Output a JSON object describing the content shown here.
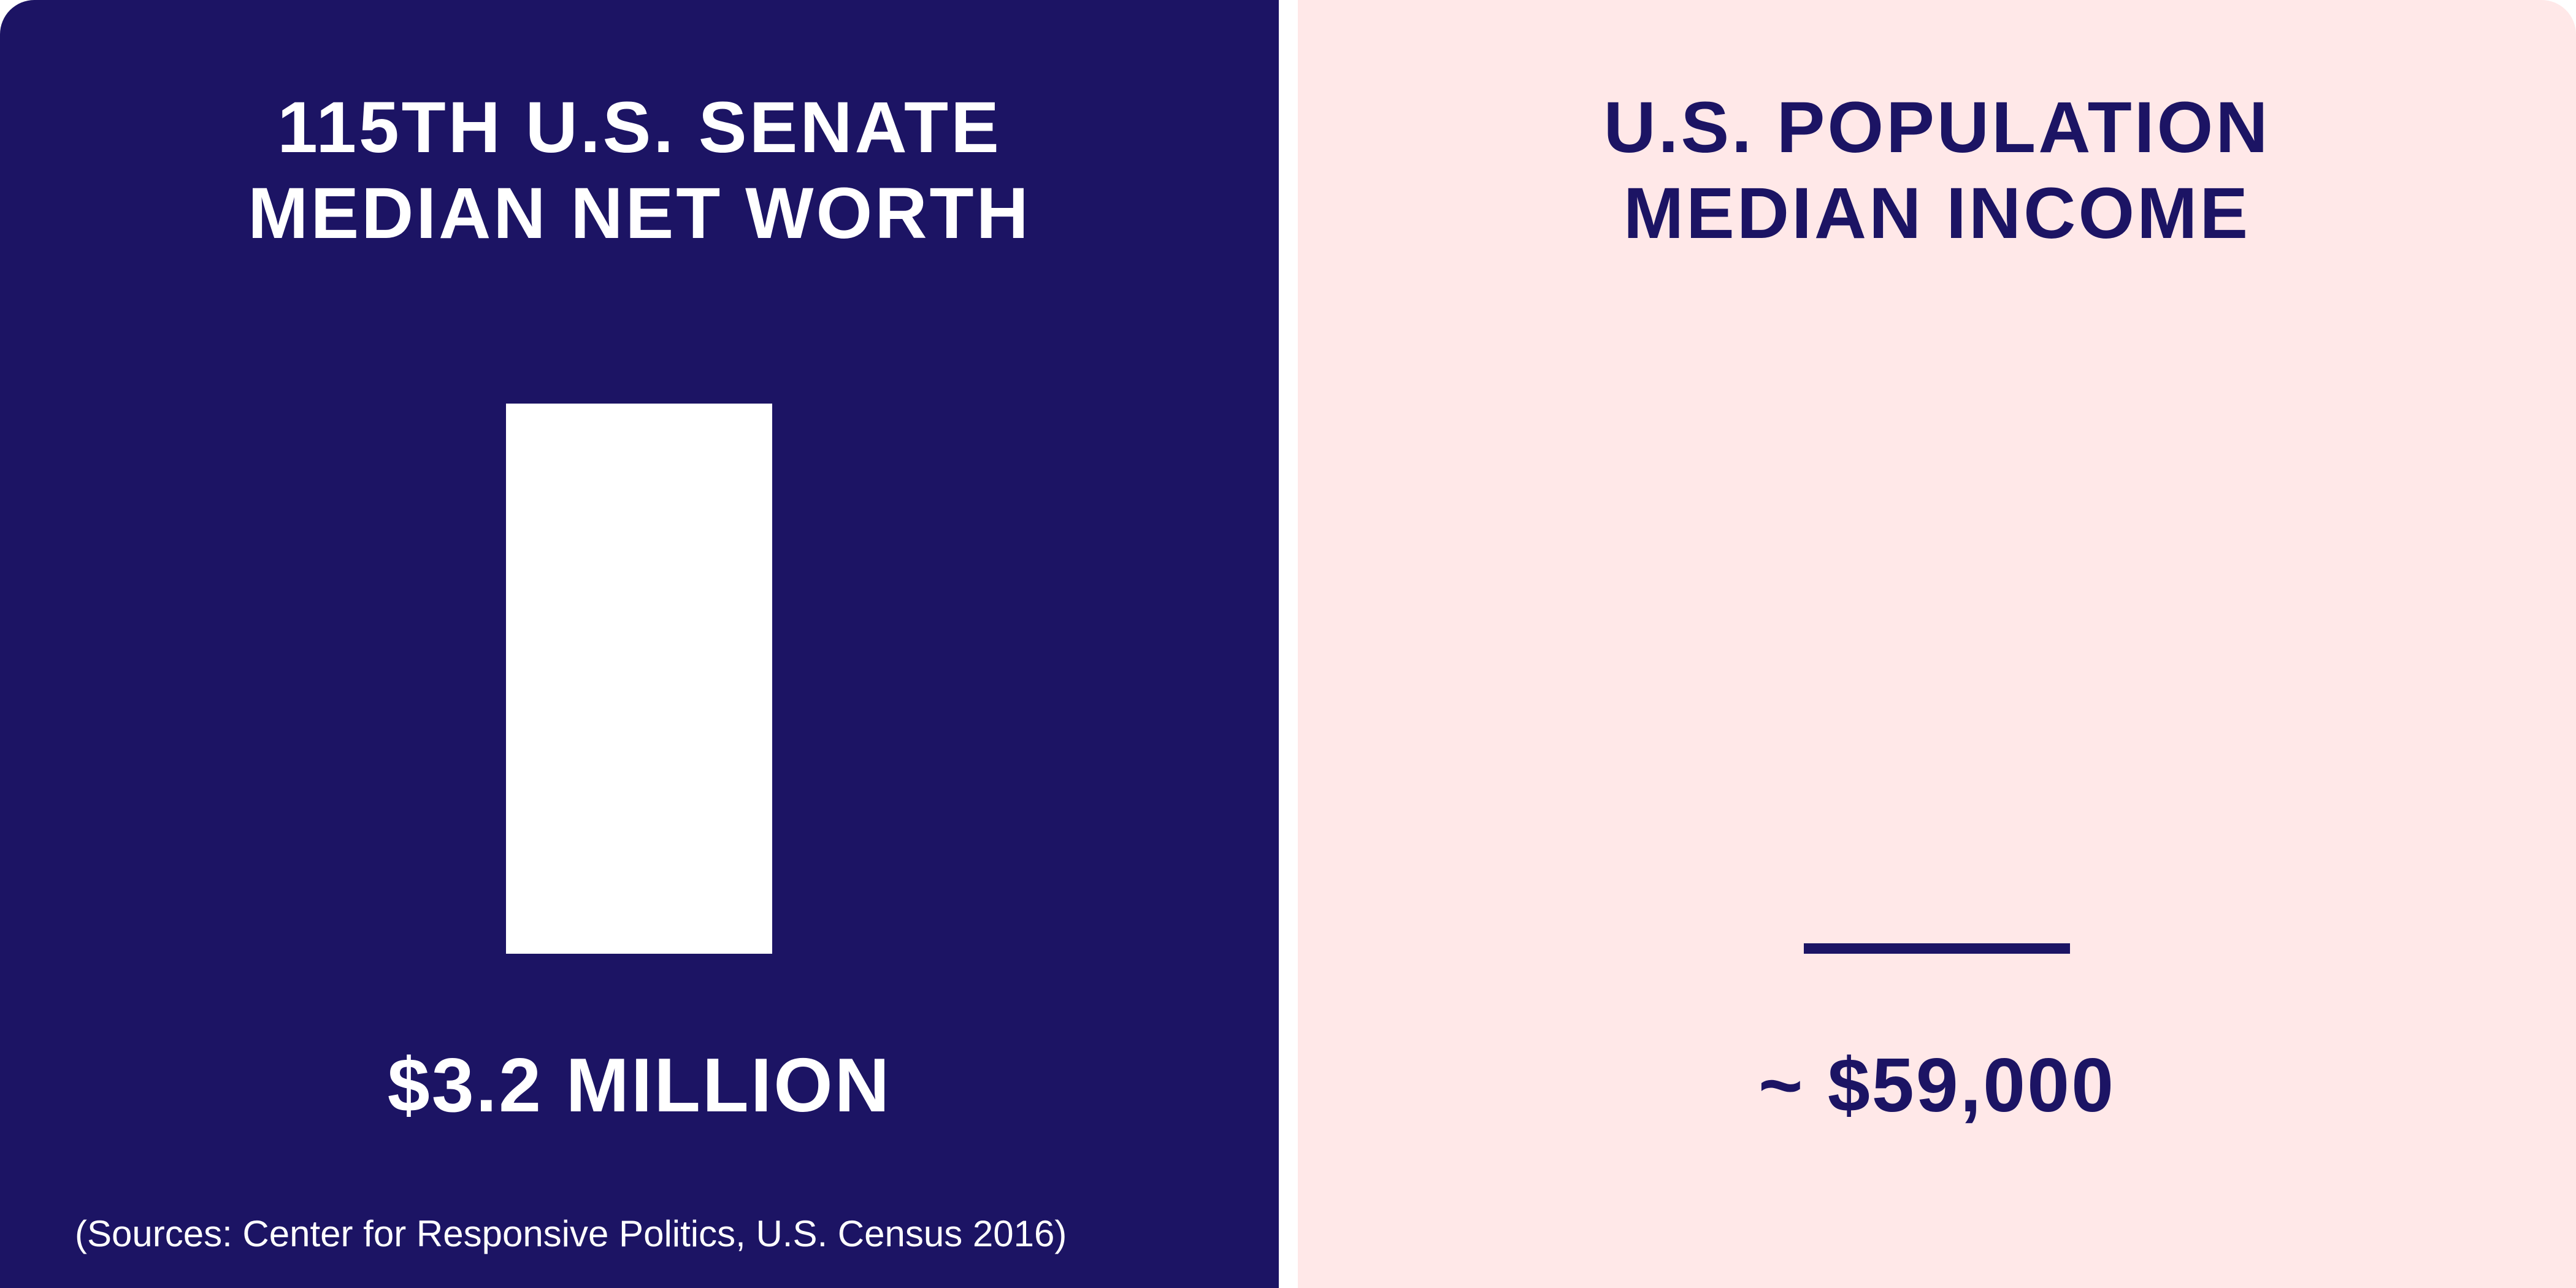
{
  "colors": {
    "navy": "#1c1464",
    "pink": "#ffe8e8",
    "white": "#ffffff"
  },
  "chart_data": {
    "type": "bar",
    "categories": [
      [
        "115TH U.S. SENATE",
        "MEDIAN NET WORTH"
      ],
      [
        "U.S. POPULATION",
        "MEDIAN INCOME"
      ]
    ],
    "values": [
      3200000,
      59000
    ],
    "value_labels": [
      "$3.2 MILLION",
      "~ $59,000"
    ],
    "grid": false
  },
  "source_note": "(Sources: Center for Responsive Politics, U.S. Census 2016)"
}
